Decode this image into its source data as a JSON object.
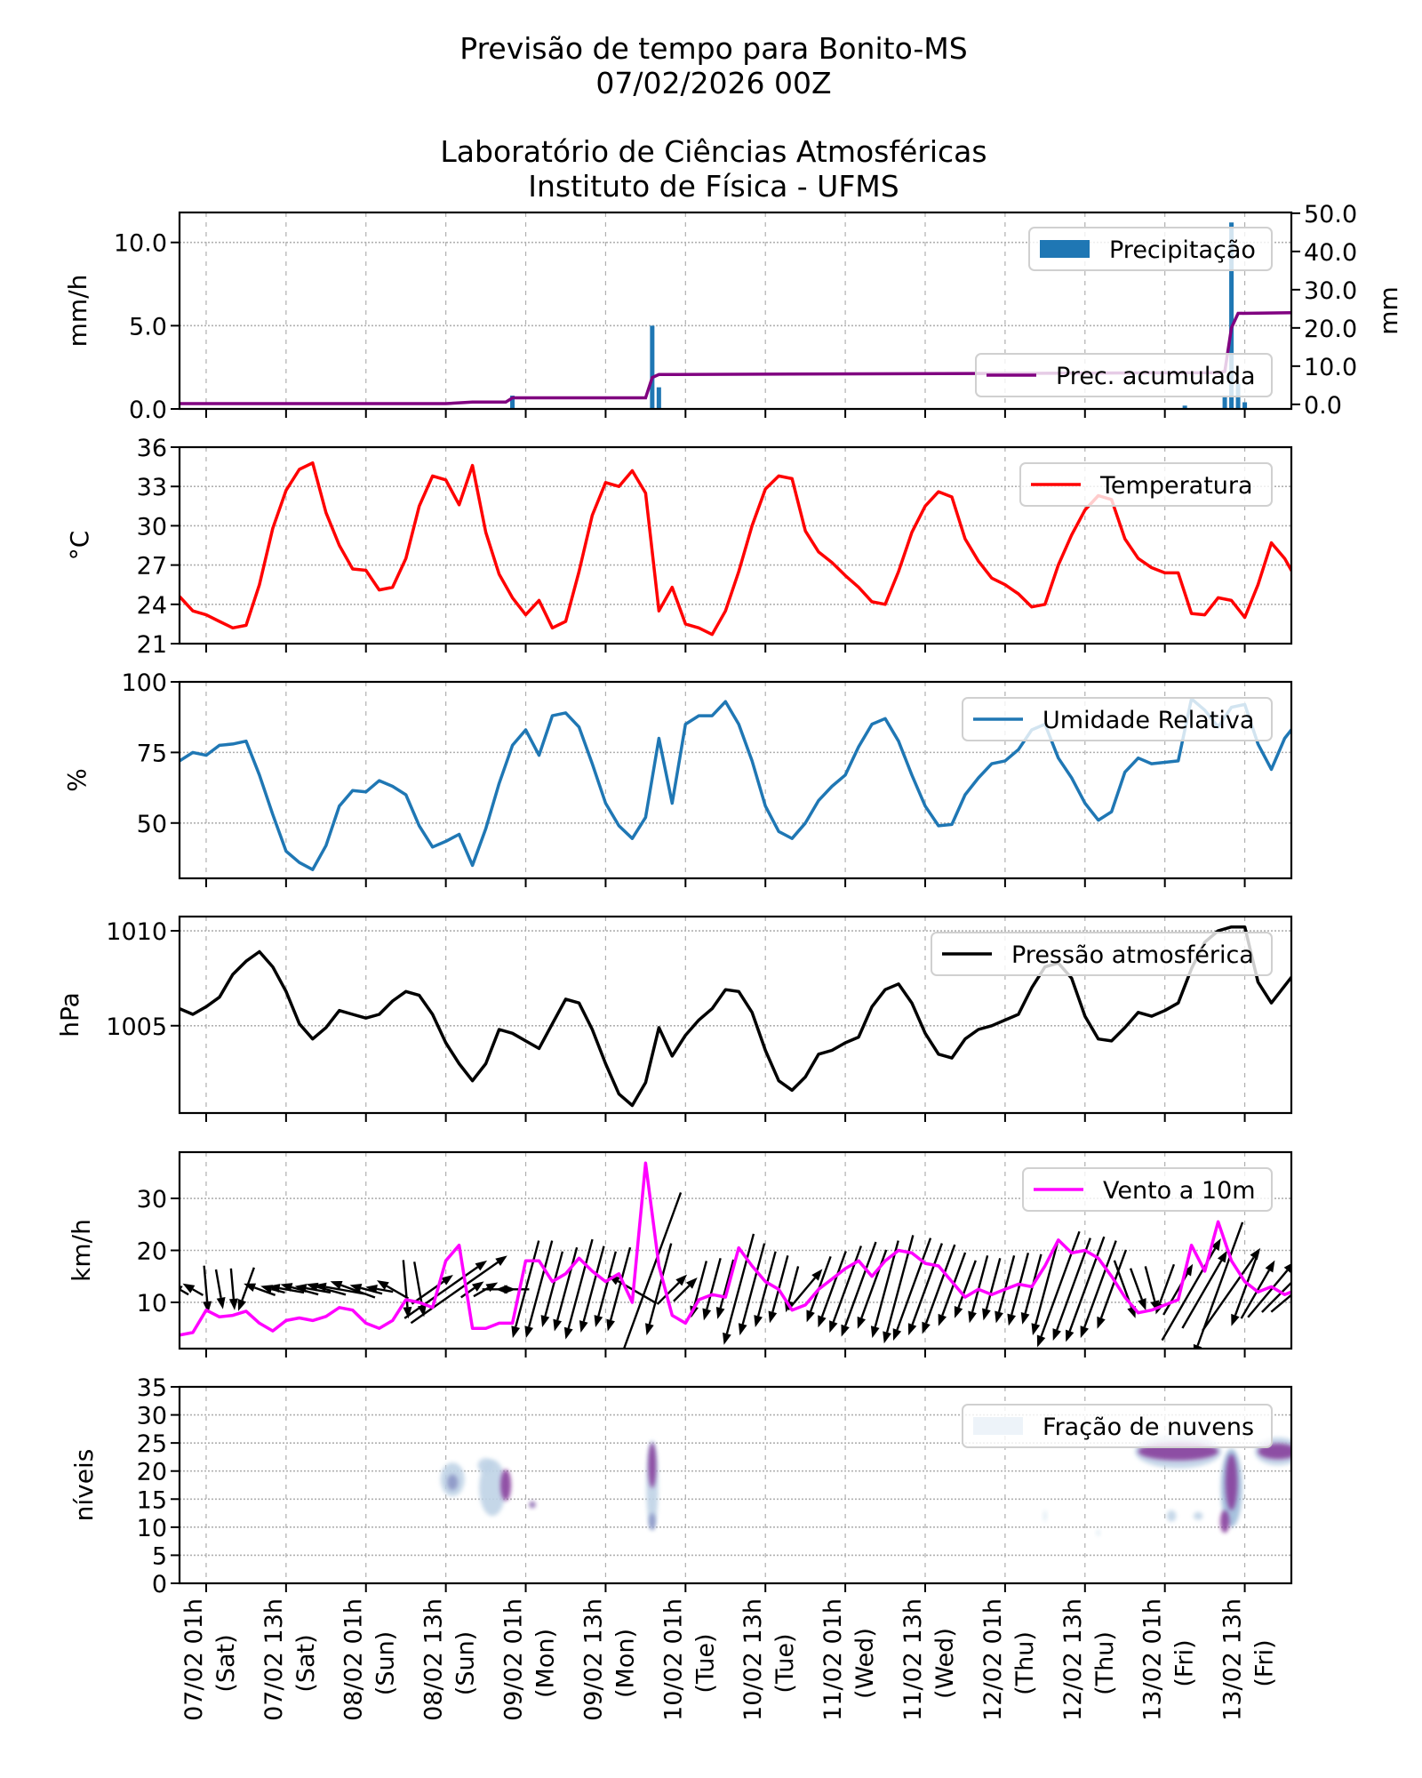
{
  "title": {
    "line1": "Previsão de tempo para Bonito-MS",
    "line2": "07/02/2026 00Z",
    "line3": "Laboratório de Ciências Atmosféricas",
    "line4": "Instituto de Física - UFMS"
  },
  "x_axis": {
    "range": [
      "06/02 21h",
      "13/02 20h"
    ],
    "ticks": [
      {
        "time": "07/02 01h",
        "day": "(Sat)"
      },
      {
        "time": "07/02 13h",
        "day": "(Sat)"
      },
      {
        "time": "08/02 01h",
        "day": "(Sun)"
      },
      {
        "time": "08/02 13h",
        "day": "(Sun)"
      },
      {
        "time": "09/02 01h",
        "day": "(Mon)"
      },
      {
        "time": "09/02 13h",
        "day": "(Mon)"
      },
      {
        "time": "10/02 01h",
        "day": "(Tue)"
      },
      {
        "time": "10/02 13h",
        "day": "(Tue)"
      },
      {
        "time": "11/02 01h",
        "day": "(Wed)"
      },
      {
        "time": "11/02 13h",
        "day": "(Wed)"
      },
      {
        "time": "12/02 01h",
        "day": "(Thu)"
      },
      {
        "time": "12/02 13h",
        "day": "(Thu)"
      },
      {
        "time": "13/02 01h",
        "day": "(Fri)"
      },
      {
        "time": "13/02 13h",
        "day": "(Fri)"
      }
    ]
  },
  "chart_data": {
    "grid": true,
    "x": [
      "06/02 21h",
      "06/02 23h",
      "07/02 01h",
      "07/02 03h",
      "07/02 05h",
      "07/02 07h",
      "07/02 09h",
      "07/02 11h",
      "07/02 13h",
      "07/02 15h",
      "07/02 17h",
      "07/02 19h",
      "07/02 21h",
      "07/02 23h",
      "08/02 01h",
      "08/02 03h",
      "08/02 05h",
      "08/02 07h",
      "08/02 09h",
      "08/02 11h",
      "08/02 13h",
      "08/02 15h",
      "08/02 17h",
      "08/02 19h",
      "08/02 21h",
      "08/02 23h",
      "09/02 01h",
      "09/02 03h",
      "09/02 05h",
      "09/02 07h",
      "09/02 09h",
      "09/02 11h",
      "09/02 13h",
      "09/02 15h",
      "09/02 17h",
      "09/02 19h",
      "09/02 21h",
      "09/02 23h",
      "10/02 01h",
      "10/02 03h",
      "10/02 05h",
      "10/02 07h",
      "10/02 09h",
      "10/02 11h",
      "10/02 13h",
      "10/02 15h",
      "10/02 17h",
      "10/02 19h",
      "10/02 21h",
      "10/02 23h",
      "11/02 01h",
      "11/02 03h",
      "11/02 05h",
      "11/02 07h",
      "11/02 09h",
      "11/02 11h",
      "11/02 13h",
      "11/02 15h",
      "11/02 17h",
      "11/02 19h",
      "11/02 21h",
      "11/02 23h",
      "12/02 01h",
      "12/02 03h",
      "12/02 05h",
      "12/02 07h",
      "12/02 09h",
      "12/02 11h",
      "12/02 13h",
      "12/02 15h",
      "12/02 17h",
      "12/02 19h",
      "12/02 21h",
      "12/02 23h",
      "13/02 01h",
      "13/02 03h",
      "13/02 05h",
      "13/02 07h",
      "13/02 09h",
      "13/02 11h",
      "13/02 13h",
      "13/02 15h",
      "13/02 17h",
      "13/02 19h",
      "13/02 21h"
    ],
    "panels": [
      {
        "type": "bar",
        "ylabel": "mm/h",
        "ylim": [
          0,
          11.8
        ],
        "yticks": [
          "0.0",
          "5.0",
          "10.0"
        ],
        "legend": "Precipitação",
        "legend_position": "top-right",
        "color": "#1f77b4",
        "bars": [
          {
            "time": "08/02 23h",
            "value": 0.8
          },
          {
            "time": "09/02 20h",
            "value": 5.0
          },
          {
            "time": "09/02 21h",
            "value": 1.3
          },
          {
            "time": "13/02 04h",
            "value": 0.2
          },
          {
            "time": "13/02 10h",
            "value": 0.7
          },
          {
            "time": "13/02 11h",
            "value": 11.2
          },
          {
            "time": "13/02 12h",
            "value": 1.5
          },
          {
            "time": "13/02 13h",
            "value": 0.4
          }
        ],
        "secondary": {
          "type": "line",
          "ylabel": "mm",
          "ylim": [
            -1.2,
            50.2
          ],
          "yticks": [
            "0.0",
            "10.0",
            "20.0",
            "30.0",
            "40.0",
            "50.0"
          ],
          "legend": "Prec. acumulada",
          "legend_position": "center-right",
          "color": "#800080",
          "points": [
            [
              "06/02 21h",
              0.2
            ],
            [
              "08/02 13h",
              0.2
            ],
            [
              "08/02 17h",
              0.6
            ],
            [
              "08/02 22h",
              0.6
            ],
            [
              "08/02 23h",
              1.7
            ],
            [
              "09/02 19h",
              1.7
            ],
            [
              "09/02 20h",
              7.0
            ],
            [
              "09/02 21h",
              7.8
            ],
            [
              "13/02 09h",
              8.3
            ],
            [
              "13/02 10h",
              8.6
            ],
            [
              "13/02 11h",
              20.0
            ],
            [
              "13/02 12h",
              23.8
            ],
            [
              "13/02 21h",
              24.0
            ]
          ]
        }
      },
      {
        "type": "line",
        "ylabel": "°C",
        "ylim": [
          21,
          36
        ],
        "yticks": [
          "21",
          "24",
          "27",
          "30",
          "33",
          "36"
        ],
        "legend": "Temperatura",
        "legend_position": "top-right",
        "color": "#ff0000",
        "values": [
          24.6,
          23.5,
          23.2,
          22.7,
          22.2,
          22.4,
          25.5,
          29.8,
          32.7,
          34.3,
          34.8,
          31,
          28.5,
          26.7,
          26.6,
          25.1,
          25.3,
          27.5,
          31.5,
          33.8,
          33.5,
          31.6,
          34.6,
          29.5,
          26.3,
          24.5,
          23.2,
          24.3,
          22.2,
          22.7,
          26.5,
          30.8,
          33.3,
          33,
          34.2,
          32.5,
          23.5,
          25.3,
          22.5,
          22.2,
          21.7,
          23.5,
          26.5,
          30,
          32.8,
          33.8,
          33.6,
          29.6,
          28,
          27.2,
          26.2,
          25.3,
          24.2,
          24,
          26.5,
          29.5,
          31.5,
          32.6,
          32.2,
          29,
          27.3,
          26,
          25.5,
          24.8,
          23.8,
          24,
          27,
          29.3,
          31.2,
          32.3,
          32,
          29,
          27.5,
          26.8,
          26.4,
          26.4,
          23.3,
          23.2,
          24.5,
          24.3,
          23,
          25.5,
          28.7,
          27.5,
          25.7
        ]
      },
      {
        "type": "line",
        "ylabel": "%",
        "ylim": [
          30.4,
          100
        ],
        "yticks": [
          "50",
          "75",
          "100"
        ],
        "legend": "Umidade Relativa",
        "legend_position": "top-right",
        "color": "#1f77b4",
        "values": [
          72,
          75,
          74,
          77.5,
          78,
          79,
          67,
          53,
          40,
          36,
          33.5,
          42,
          56,
          61.5,
          61,
          65,
          63,
          60,
          49,
          41.5,
          43.5,
          46,
          35,
          48,
          64,
          77.5,
          83,
          74,
          88,
          89,
          84,
          71,
          57,
          49,
          44.5,
          52,
          80,
          57,
          85,
          88,
          88,
          93,
          85,
          72,
          56,
          47,
          44.5,
          50,
          58,
          63,
          67,
          77,
          85,
          87,
          79,
          67,
          56,
          49,
          49.5,
          60,
          66,
          71,
          72,
          76,
          83,
          85,
          73,
          66,
          57,
          51,
          54,
          68,
          73,
          71,
          71.5,
          72,
          94,
          90,
          84,
          91,
          92,
          78,
          69,
          80,
          86
        ]
      },
      {
        "type": "line",
        "ylabel": "hPa",
        "ylim": [
          1000.4,
          1010.75
        ],
        "yticks": [
          "1005",
          "1010"
        ],
        "legend": "Pressão atmosférica",
        "legend_position": "top-right",
        "color": "#000000",
        "values": [
          1005.9,
          1005.6,
          1006.0,
          1006.5,
          1007.7,
          1008.4,
          1008.9,
          1008.1,
          1006.8,
          1005.1,
          1004.3,
          1004.9,
          1005.8,
          1005.6,
          1005.4,
          1005.6,
          1006.3,
          1006.8,
          1006.6,
          1005.6,
          1004.1,
          1003.0,
          1002.1,
          1003.0,
          1004.8,
          1004.6,
          1004.2,
          1003.8,
          1005.1,
          1006.4,
          1006.2,
          1004.8,
          1003.0,
          1001.4,
          1000.8,
          1002.0,
          1004.9,
          1003.4,
          1004.5,
          1005.3,
          1005.9,
          1006.9,
          1006.8,
          1005.7,
          1003.7,
          1002.1,
          1001.6,
          1002.3,
          1003.5,
          1003.7,
          1004.1,
          1004.4,
          1006.0,
          1006.9,
          1007.2,
          1006.2,
          1004.6,
          1003.5,
          1003.3,
          1004.3,
          1004.8,
          1005.0,
          1005.3,
          1005.6,
          1007.0,
          1008.1,
          1008.3,
          1007.5,
          1005.5,
          1004.3,
          1004.2,
          1004.9,
          1005.7,
          1005.5,
          1005.8,
          1006.2,
          1008.0,
          1009.4,
          1010.0,
          1010.2,
          1010.2,
          1007.3,
          1006.2,
          1007.1,
          1008.0
        ]
      },
      {
        "type": "line",
        "ylabel": "km/h",
        "ylim": [
          1.1,
          38.9
        ],
        "yticks": [
          "10",
          "20",
          "30"
        ],
        "legend": "Vento a 10m",
        "legend_position": "top-right",
        "color": "#ff00ff",
        "values": [
          3.7,
          4.2,
          8.5,
          7.2,
          7.5,
          8.3,
          6,
          4.5,
          6.5,
          7,
          6.5,
          7.3,
          9,
          8.5,
          6,
          5,
          6.5,
          10.5,
          10,
          9,
          18,
          21,
          5,
          5,
          6,
          6,
          18,
          18,
          14,
          15.5,
          18.5,
          16,
          14,
          15.5,
          10,
          36.8,
          17,
          7.5,
          6,
          10.5,
          11.5,
          11,
          20.5,
          17,
          14,
          12.5,
          8.5,
          9.5,
          12.5,
          14.5,
          16.5,
          18,
          15,
          18,
          20,
          19.5,
          17.5,
          17,
          14,
          11,
          12.5,
          11.5,
          12.5,
          13.5,
          13,
          17,
          22,
          19.5,
          20,
          18.5,
          15,
          11,
          8,
          8.5,
          9.5,
          10.5,
          21,
          16,
          25.5,
          18,
          14,
          12,
          13,
          11.5,
          12.5
        ],
        "arrow_direction_deg": [
          300,
          300,
          175,
          170,
          175,
          200,
          290,
          285,
          280,
          285,
          280,
          285,
          280,
          290,
          285,
          280,
          300,
          175,
          170,
          55,
          55,
          55,
          55,
          60,
          90,
          270,
          195,
          195,
          195,
          195,
          195,
          195,
          195,
          195,
          300,
          200,
          195,
          45,
          45,
          195,
          195,
          195,
          195,
          195,
          195,
          195,
          195,
          40,
          200,
          200,
          200,
          200,
          200,
          195,
          195,
          200,
          200,
          200,
          200,
          200,
          195,
          195,
          195,
          195,
          195,
          195,
          200,
          200,
          200,
          200,
          200,
          160,
          160,
          165,
          200,
          30,
          30,
          30,
          200,
          35,
          200,
          30,
          40,
          45,
          50
        ],
        "arrow_color": "#000000"
      },
      {
        "type": "heatmap",
        "ylabel": "níveis",
        "ylim": [
          0,
          35
        ],
        "yticks": [
          "0",
          "5",
          "10",
          "15",
          "20",
          "25",
          "30",
          "35"
        ],
        "legend": "Fração de nuvens",
        "legend_position": "top-right",
        "colormap": [
          "#f7fcfd",
          "#e0ecf4",
          "#bfd3e6",
          "#9ebcda",
          "#8c96c6",
          "#8c6bb1",
          "#88419d",
          "#6e016b"
        ],
        "cloud_regions": [
          {
            "time": "08/02 14h",
            "level": 18.5,
            "half_hours": 1.8,
            "half_levels": 3.0,
            "fraction": 0.3
          },
          {
            "time": "08/02 14h",
            "level": 18.0,
            "half_hours": 0.8,
            "half_levels": 1.4,
            "fraction": 0.5
          },
          {
            "time": "08/02 20h",
            "level": 17.0,
            "half_hours": 2.0,
            "half_levels": 5.0,
            "fraction": 0.3
          },
          {
            "time": "08/02 19h",
            "level": 21.0,
            "half_hours": 1.2,
            "half_levels": 1.3,
            "fraction": 0.35
          },
          {
            "time": "08/02 22h",
            "level": 17.5,
            "half_hours": 0.8,
            "half_levels": 2.8,
            "fraction": 0.85
          },
          {
            "time": "09/02 02h",
            "level": 14.0,
            "half_hours": 0.5,
            "half_levels": 0.6,
            "fraction": 0.7
          },
          {
            "time": "09/02 20h",
            "level": 17.5,
            "half_hours": 0.9,
            "half_levels": 8.0,
            "fraction": 0.35
          },
          {
            "time": "09/02 20h",
            "level": 21.0,
            "half_hours": 0.6,
            "half_levels": 4.0,
            "fraction": 0.9
          },
          {
            "time": "09/02 20h",
            "level": 11.0,
            "half_hours": 0.5,
            "half_levels": 1.5,
            "fraction": 0.6
          },
          {
            "time": "12/02 07h",
            "level": 12.0,
            "half_hours": 0.3,
            "half_levels": 1.0,
            "fraction": 0.2
          },
          {
            "time": "12/02 15h",
            "level": 9.0,
            "half_hours": 0.3,
            "half_levels": 0.6,
            "fraction": 0.15
          },
          {
            "time": "13/02 03h",
            "level": 23.5,
            "half_hours": 6.5,
            "half_levels": 3.0,
            "fraction": 0.3
          },
          {
            "time": "13/02 18h",
            "level": 23.5,
            "half_hours": 3.5,
            "half_levels": 2.5,
            "fraction": 0.3
          },
          {
            "time": "13/02 02h",
            "level": 12.0,
            "half_hours": 0.7,
            "half_levels": 1.0,
            "fraction": 0.3
          },
          {
            "time": "13/02 06h",
            "level": 12.0,
            "half_hours": 0.7,
            "half_levels": 0.7,
            "fraction": 0.35
          },
          {
            "time": "13/02 11h",
            "level": 17.0,
            "half_hours": 1.6,
            "half_levels": 7.0,
            "fraction": 0.45
          },
          {
            "time": "13/02 03h",
            "level": 23.5,
            "half_hours": 6.0,
            "half_levels": 1.6,
            "fraction": 0.85
          },
          {
            "time": "13/02 18h",
            "level": 23.5,
            "half_hours": 3.0,
            "half_levels": 1.4,
            "fraction": 0.85
          },
          {
            "time": "13/02 11h",
            "level": 18.0,
            "half_hours": 0.9,
            "half_levels": 5.0,
            "fraction": 0.85
          },
          {
            "time": "13/02 10h",
            "level": 11.0,
            "half_hours": 0.7,
            "half_levels": 2.0,
            "fraction": 0.85
          }
        ]
      }
    ]
  }
}
